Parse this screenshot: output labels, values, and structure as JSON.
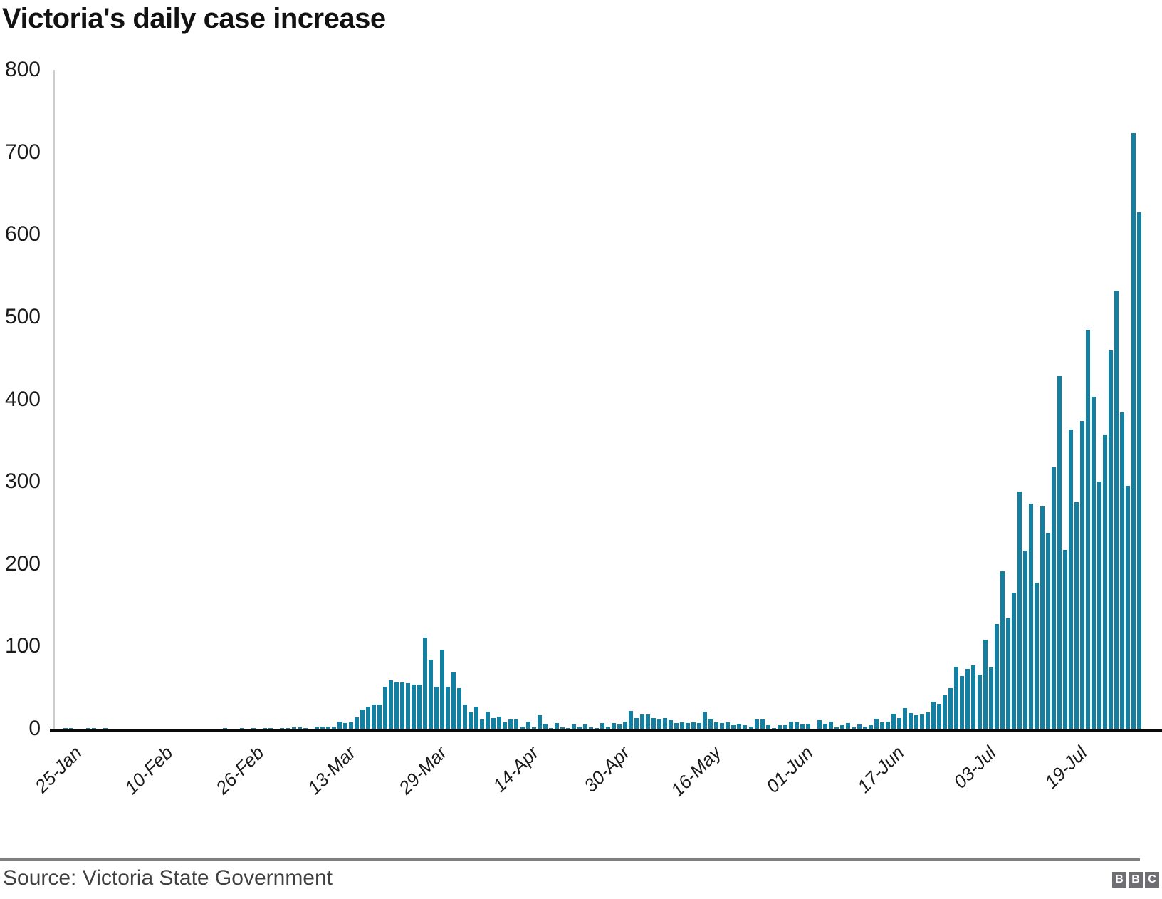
{
  "title": "Victoria's daily case increase",
  "footer": {
    "source": "Source: Victoria State Government",
    "logo_letters": [
      "B",
      "B",
      "C"
    ]
  },
  "colors": {
    "bar": "#1380A1",
    "title_text": "#121212",
    "axis_line": "#0a0a0a",
    "y_axis_line": "#cccccc",
    "tick_text": "#1a1a1a",
    "divider": "#7f7f7f",
    "source_text": "#404040",
    "logo_bg": "#6E6E73",
    "logo_text": "#ffffff"
  },
  "chart_data": {
    "type": "bar",
    "title": "Victoria's daily case increase",
    "xlabel": "",
    "ylabel": "",
    "ylim": [
      0,
      800
    ],
    "grid": "off",
    "legend": "none",
    "x_unit": "day",
    "start_date": "25-Jan",
    "end_date": "31-Jul",
    "y_ticks": [
      0,
      100,
      200,
      300,
      400,
      500,
      600,
      700,
      800
    ],
    "x_ticks": [
      {
        "label": "25-Jan",
        "day": 0
      },
      {
        "label": "10-Feb",
        "day": 16
      },
      {
        "label": "26-Feb",
        "day": 32
      },
      {
        "label": "13-Mar",
        "day": 48
      },
      {
        "label": "29-Mar",
        "day": 64
      },
      {
        "label": "14-Apr",
        "day": 80
      },
      {
        "label": "30-Apr",
        "day": 96
      },
      {
        "label": "16-May",
        "day": 112
      },
      {
        "label": "01-Jun",
        "day": 128
      },
      {
        "label": "17-Jun",
        "day": 144
      },
      {
        "label": "03-Jul",
        "day": 160
      },
      {
        "label": "19-Jul",
        "day": 176
      }
    ],
    "values": [
      1,
      1,
      0,
      0,
      1,
      1,
      0,
      1,
      0,
      0,
      0,
      0,
      0,
      0,
      0,
      0,
      0,
      0,
      0,
      0,
      0,
      0,
      0,
      0,
      0,
      0,
      0,
      0,
      1,
      0,
      0,
      1,
      0,
      1,
      0,
      1,
      1,
      0,
      1,
      1,
      2,
      2,
      1,
      0,
      3,
      3,
      3,
      3,
      9,
      7,
      8,
      14,
      23,
      27,
      29,
      29,
      51,
      59,
      56,
      56,
      55,
      54,
      54,
      111,
      84,
      51,
      96,
      51,
      68,
      49,
      29,
      20,
      27,
      11,
      21,
      13,
      15,
      8,
      11,
      11,
      3,
      9,
      2,
      16,
      6,
      1,
      7,
      2,
      1,
      5,
      3,
      5,
      2,
      1,
      7,
      3,
      7,
      5,
      9,
      22,
      13,
      17,
      17,
      13,
      11,
      13,
      10,
      7,
      8,
      7,
      8,
      7,
      21,
      12,
      8,
      7,
      8,
      4,
      6,
      4,
      3,
      11,
      11,
      4,
      1,
      4,
      4,
      9,
      8,
      5,
      6,
      0,
      10,
      6,
      9,
      2,
      4,
      7,
      2,
      5,
      3,
      4,
      12,
      8,
      9,
      18,
      13,
      25,
      19,
      16,
      17,
      20,
      33,
      30,
      41,
      49,
      75,
      64,
      73,
      77,
      66,
      108,
      74,
      127,
      191,
      134,
      165,
      288,
      216,
      273,
      177,
      270,
      238,
      317,
      428,
      217,
      363,
      275,
      374,
      484,
      403,
      300,
      357,
      459,
      532,
      384,
      295,
      723,
      627
    ]
  }
}
